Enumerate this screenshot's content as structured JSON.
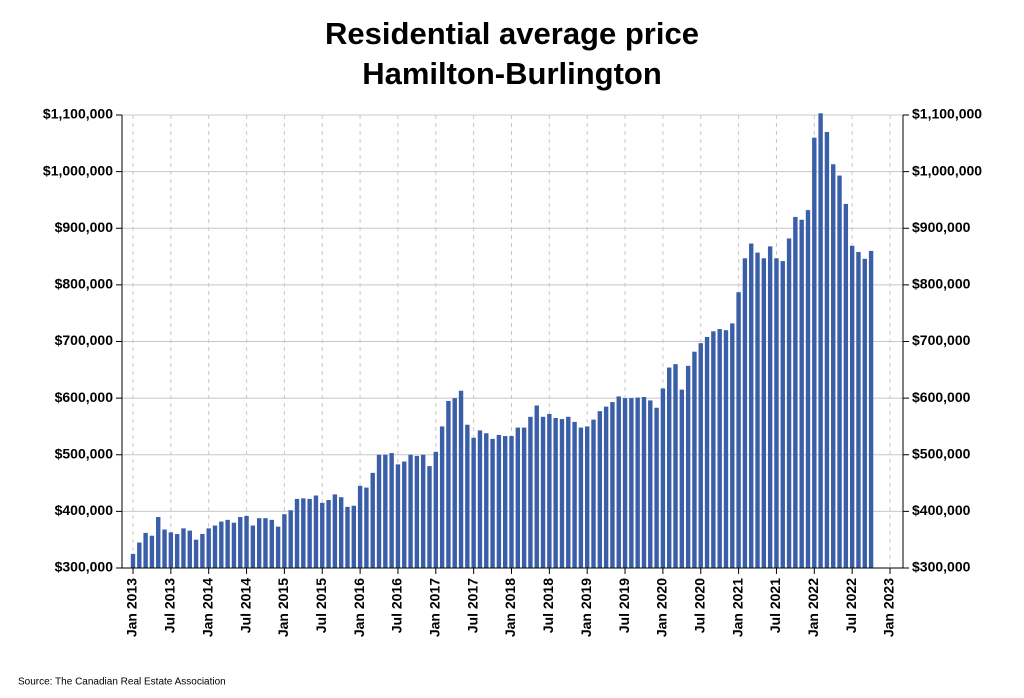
{
  "chart_data": {
    "type": "bar",
    "title": "Residential average price",
    "subtitle": "Hamilton-Burlington",
    "source": "Source: The Canadian Real Estate Association",
    "color": "#3a5fa8",
    "grid": true,
    "categories": [
      "Jan 2013",
      null,
      null,
      null,
      null,
      null,
      "Jul 2013",
      null,
      null,
      null,
      null,
      null,
      "Jan 2014",
      null,
      null,
      null,
      null,
      null,
      "Jul 2014",
      null,
      null,
      null,
      null,
      null,
      "Jan 2015",
      null,
      null,
      null,
      null,
      null,
      "Jul 2015",
      null,
      null,
      null,
      null,
      null,
      "Jan 2016",
      null,
      null,
      null,
      null,
      null,
      "Jul 2016",
      null,
      null,
      null,
      null,
      null,
      "Jan 2017",
      null,
      null,
      null,
      null,
      null,
      "Jul 2017",
      null,
      null,
      null,
      null,
      null,
      "Jan 2018",
      null,
      null,
      null,
      null,
      null,
      "Jul 2018",
      null,
      null,
      null,
      null,
      null,
      "Jan 2019",
      null,
      null,
      null,
      null,
      null,
      "Jul 2019",
      null,
      null,
      null,
      null,
      null,
      "Jan 2020",
      null,
      null,
      null,
      null,
      null,
      "Jul 2020",
      null,
      null,
      null,
      null,
      null,
      "Jan 2021",
      null,
      null,
      null,
      null,
      null,
      "Jul 2021",
      null,
      null,
      null,
      null,
      null,
      "Jan 2022",
      null,
      null,
      null,
      null,
      null,
      "Jul 2022",
      null,
      null,
      null,
      null,
      null,
      "Jan 2023"
    ],
    "values": [
      325000,
      345000,
      362000,
      357000,
      390000,
      368000,
      363000,
      360000,
      370000,
      366000,
      350000,
      360000,
      370000,
      375000,
      382000,
      385000,
      380000,
      390000,
      392000,
      375000,
      388000,
      388000,
      385000,
      373000,
      395000,
      402000,
      422000,
      423000,
      422000,
      428000,
      415000,
      420000,
      430000,
      425000,
      408000,
      410000,
      445000,
      442000,
      468000,
      500000,
      500000,
      503000,
      483000,
      488000,
      500000,
      498000,
      500000,
      480000,
      505000,
      550000,
      595000,
      600000,
      613000,
      553000,
      530000,
      543000,
      538000,
      528000,
      535000,
      533000,
      533000,
      548000,
      548000,
      567000,
      587000,
      567000,
      572000,
      565000,
      563000,
      567000,
      558000,
      548000,
      550000,
      562000,
      577000,
      585000,
      593000,
      603000,
      600000,
      600000,
      601000,
      602000,
      596000,
      583000,
      617000,
      654000,
      660000,
      615000,
      657000,
      682000,
      697000,
      708000,
      718000,
      722000,
      720000,
      732000,
      787000,
      847000,
      873000,
      857000,
      847000,
      868000,
      847000,
      842000,
      882000,
      920000,
      915000,
      932000,
      1060000,
      1103000,
      1070000,
      1013000,
      993000,
      943000,
      869000,
      858000,
      846000,
      860000,
      null,
      null,
      null
    ],
    "ylim": [
      300000,
      1100000
    ],
    "yticks": [
      {
        "value": 300000,
        "label": "$300,000"
      },
      {
        "value": 400000,
        "label": "$400,000"
      },
      {
        "value": 500000,
        "label": "$500,000"
      },
      {
        "value": 600000,
        "label": "$600,000"
      },
      {
        "value": 700000,
        "label": "$700,000"
      },
      {
        "value": 800000,
        "label": "$800,000"
      },
      {
        "value": 900000,
        "label": "$900,000"
      },
      {
        "value": 1000000,
        "label": "$1,000,000"
      },
      {
        "value": 1100000,
        "label": "$1,100,000"
      }
    ]
  }
}
